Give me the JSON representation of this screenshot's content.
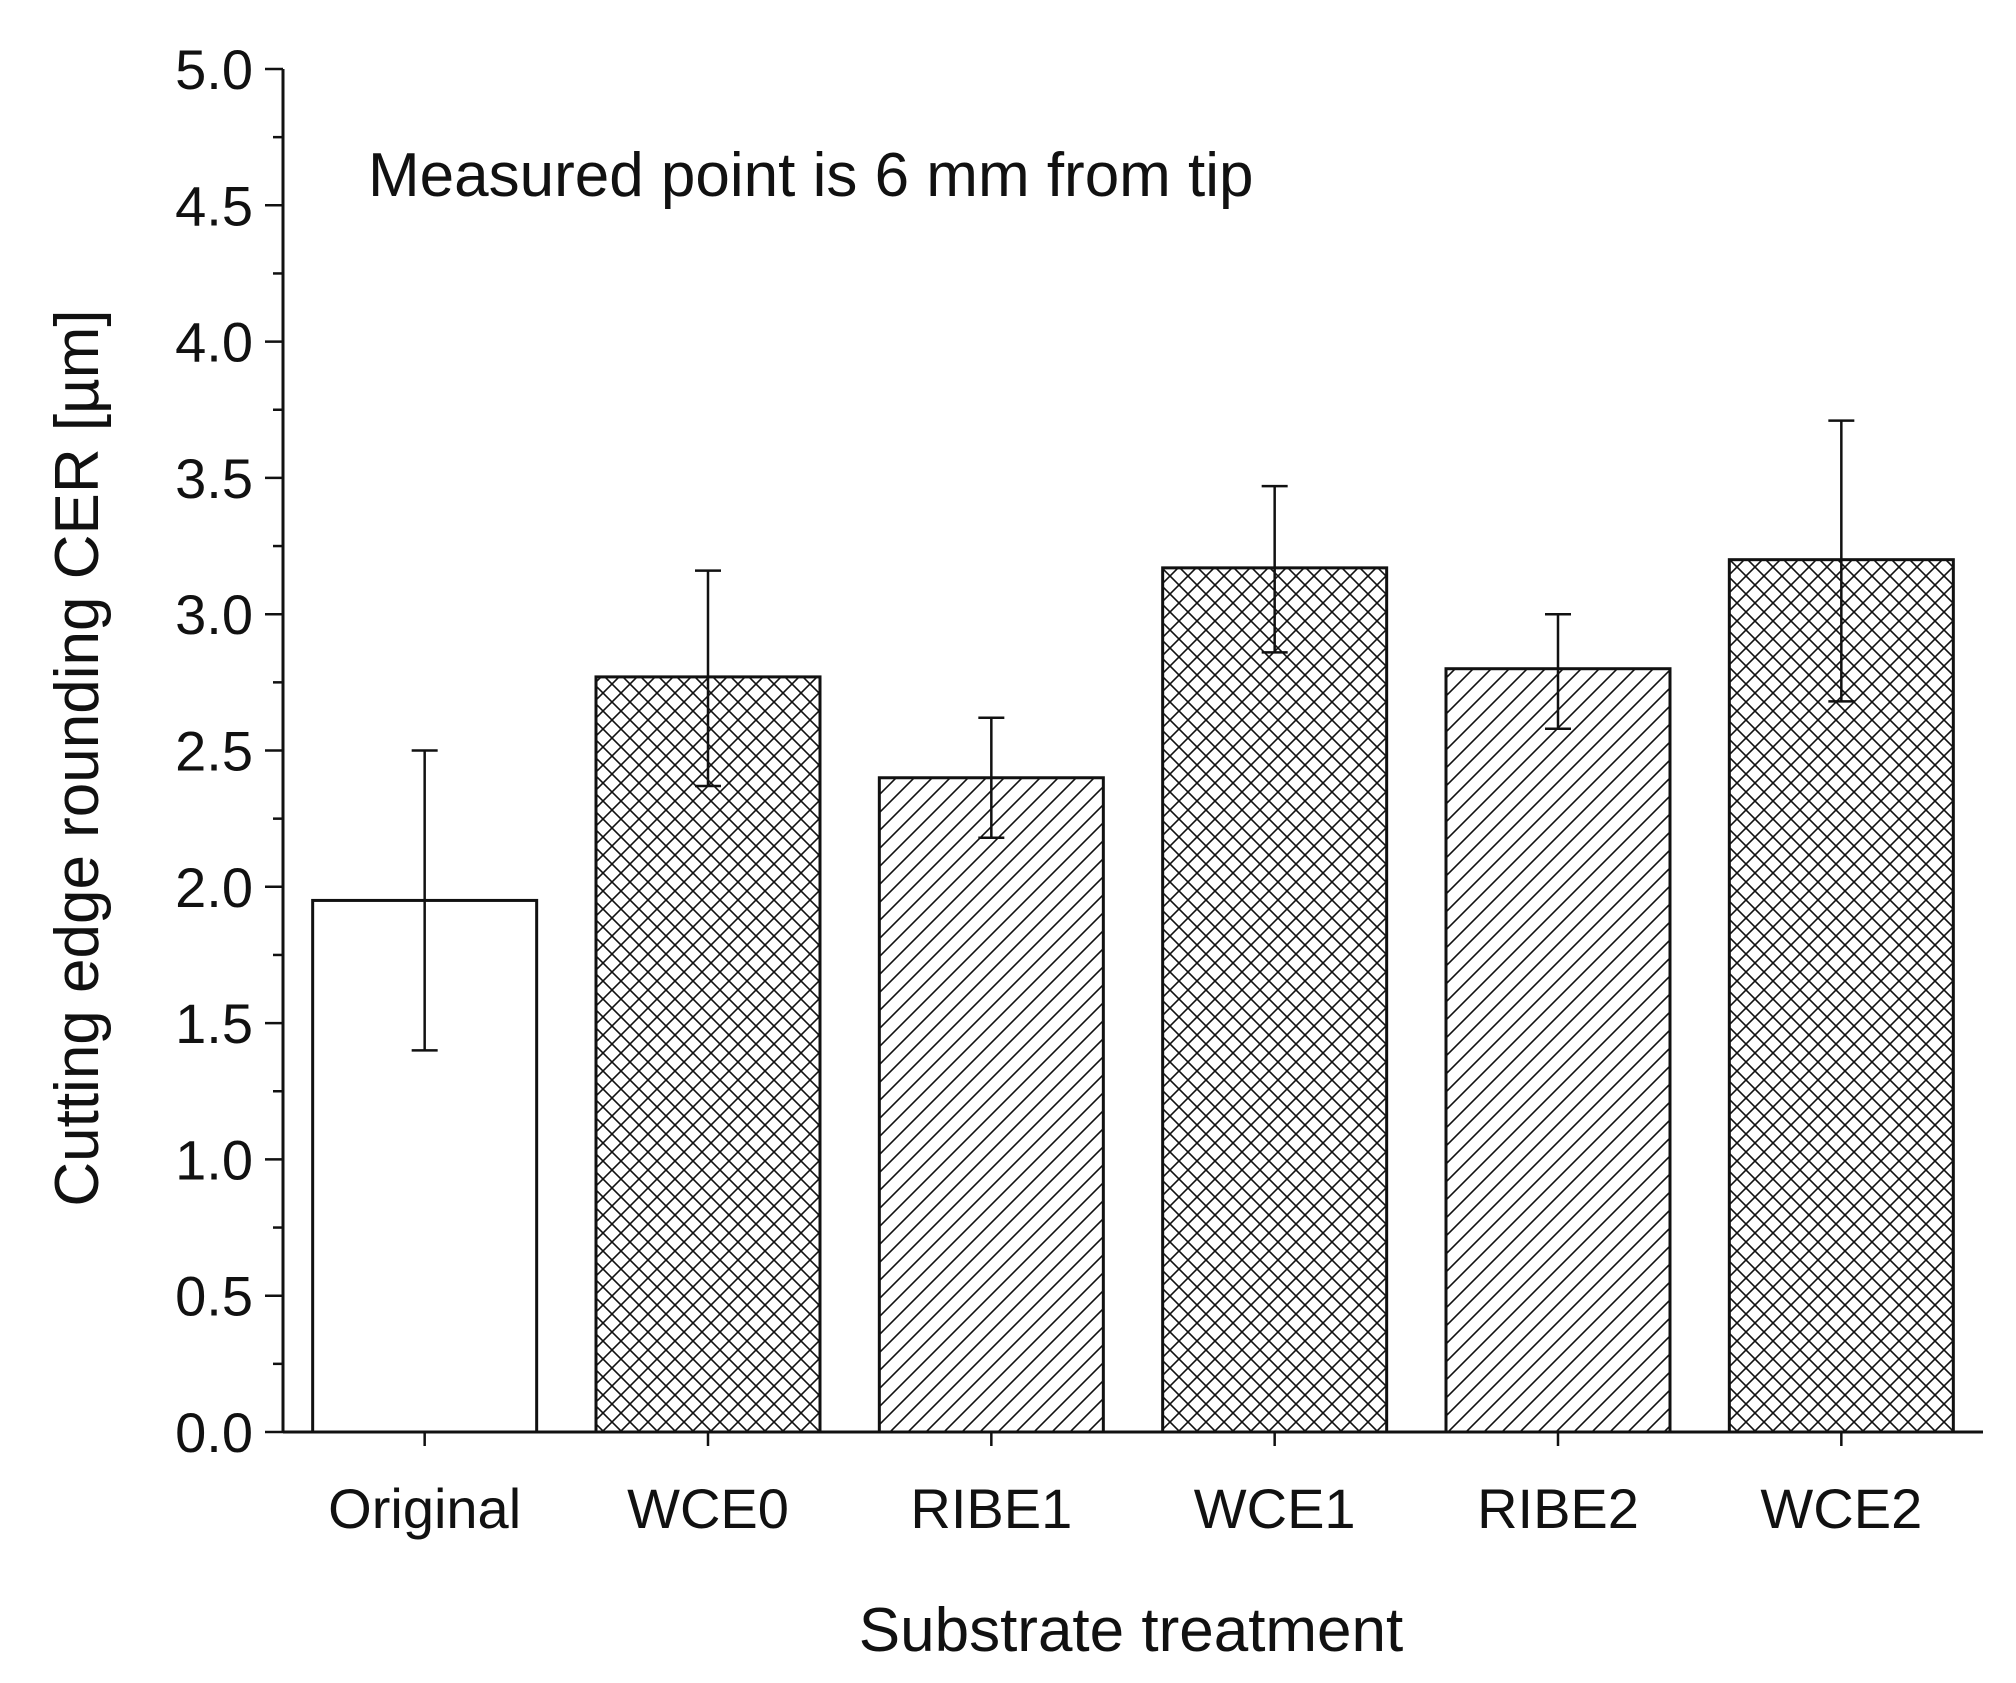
{
  "chart_data": {
    "type": "bar",
    "title": "",
    "annotation": "Measured point is 6 mm from tip",
    "xlabel": "Substrate treatment",
    "ylabel": "Cutting edge rounding CER [µm]",
    "ylim": [
      0,
      5.0
    ],
    "y_major_step": 0.5,
    "y_minor_step": 0.25,
    "y_tick_labels": [
      "0.0",
      "0.5",
      "1.0",
      "1.5",
      "2.0",
      "2.5",
      "3.0",
      "3.5",
      "4.0",
      "4.5",
      "5.0"
    ],
    "grid": false,
    "categories": [
      "Original",
      "WCE0",
      "RIBE1",
      "WCE1",
      "RIBE2",
      "WCE2"
    ],
    "values": [
      1.95,
      2.77,
      2.4,
      3.17,
      2.8,
      3.2
    ],
    "error_low": [
      1.4,
      2.37,
      2.18,
      2.86,
      2.58,
      2.68
    ],
    "error_high": [
      2.5,
      3.16,
      2.62,
      3.47,
      3.0,
      3.71
    ],
    "patterns": [
      "none",
      "crosshatch",
      "diagonal",
      "crosshatch",
      "diagonal",
      "crosshatch"
    ]
  },
  "colors": {
    "ink": "#111111",
    "bar_fill": "#ffffff",
    "background": "#ffffff"
  }
}
